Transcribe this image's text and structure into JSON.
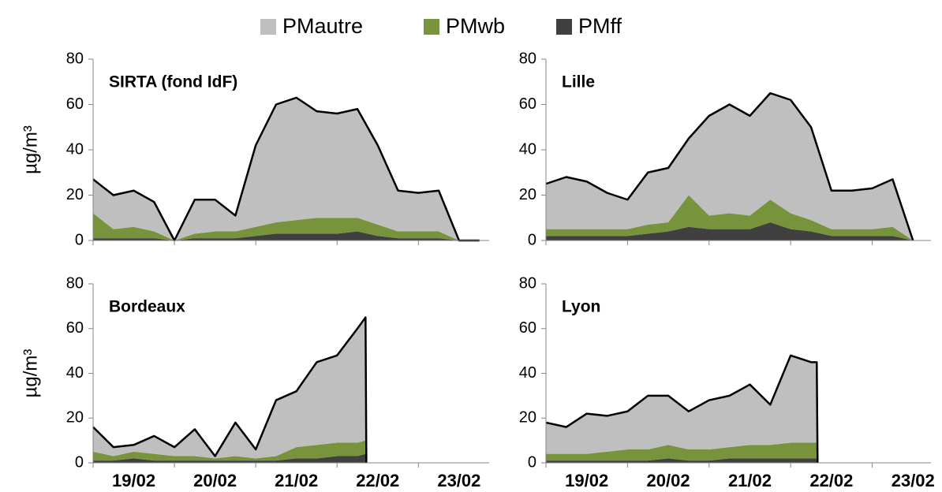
{
  "chart_data": [
    {
      "type": "area",
      "title": "SIRTA (fond IdF)",
      "y_label": "µg/m³",
      "x": [
        19,
        19.25,
        19.5,
        19.75,
        20,
        20.25,
        20.5,
        20.75,
        21,
        21.25,
        21.5,
        21.75,
        22,
        22.25,
        22.5,
        22.75,
        23,
        23.25,
        23.5,
        23.75
      ],
      "xlim": [
        19,
        23.87
      ],
      "xtick_marks": [
        19,
        20,
        21,
        22,
        23
      ],
      "ylim": [
        0,
        80
      ],
      "yticks": [
        0,
        20,
        40,
        60,
        80
      ],
      "series": [
        {
          "name": "PMautre",
          "color": "#bfbfbf",
          "values": [
            15,
            15,
            16,
            13,
            0,
            15,
            14,
            7,
            36,
            52,
            54,
            47,
            46,
            48,
            35,
            18,
            17,
            18,
            0,
            0
          ]
        },
        {
          "name": "PMwb",
          "color": "#77933c",
          "values": [
            11,
            4,
            5,
            3,
            0,
            2,
            3,
            3,
            4,
            5,
            6,
            7,
            7,
            6,
            5,
            3,
            3,
            3,
            0,
            0
          ]
        },
        {
          "name": "PMff",
          "color": "#404040",
          "values": [
            1,
            1,
            1,
            1,
            0,
            1,
            1,
            1,
            2,
            3,
            3,
            3,
            3,
            4,
            2,
            1,
            1,
            1,
            0,
            0
          ]
        }
      ]
    },
    {
      "type": "area",
      "title": "Lille",
      "x": [
        19,
        19.25,
        19.5,
        19.75,
        20,
        20.25,
        20.5,
        20.75,
        21,
        21.25,
        21.5,
        21.75,
        22,
        22.25,
        22.5,
        22.75,
        23,
        23.25,
        23.5
      ],
      "xlim": [
        19,
        23.72
      ],
      "xtick_marks": [
        19,
        20,
        21,
        22,
        23
      ],
      "ylim": [
        0,
        80
      ],
      "yticks": [
        0,
        20,
        40,
        60,
        80
      ],
      "series": [
        {
          "color": "#bfbfbf",
          "values": [
            20,
            23,
            21,
            16,
            13,
            23,
            24,
            25,
            44,
            48,
            44,
            47,
            50,
            41,
            17,
            17,
            18,
            21,
            0
          ]
        },
        {
          "color": "#77933c",
          "values": [
            3,
            3,
            3,
            3,
            3,
            4,
            4,
            14,
            6,
            7,
            6,
            10,
            7,
            5,
            3,
            3,
            3,
            4,
            0
          ]
        },
        {
          "color": "#404040",
          "values": [
            2,
            2,
            2,
            2,
            2,
            3,
            4,
            6,
            5,
            5,
            5,
            8,
            5,
            4,
            2,
            2,
            2,
            2,
            0
          ]
        }
      ]
    },
    {
      "type": "area",
      "title": "Bordeaux",
      "y_label": "µg/m³",
      "x": [
        19,
        19.25,
        19.5,
        19.75,
        20,
        20.25,
        20.5,
        20.75,
        21,
        21.25,
        21.5,
        21.75,
        22,
        22.25,
        22.35,
        22.36
      ],
      "xlim": [
        19,
        23.87
      ],
      "xtick_marks": [
        19,
        20,
        21,
        22,
        23
      ],
      "ylim": [
        0,
        80
      ],
      "yticks": [
        0,
        20,
        40,
        60,
        80
      ],
      "xticks": [
        {
          "value": 19.5,
          "label": "19/02"
        },
        {
          "value": 20.5,
          "label": "20/02"
        },
        {
          "value": 21.5,
          "label": "21/02"
        },
        {
          "value": 22.5,
          "label": "22/02"
        },
        {
          "value": 23.5,
          "label": "23/02"
        }
      ],
      "series": [
        {
          "color": "#bfbfbf",
          "values": [
            11,
            4,
            3,
            8,
            4,
            12,
            1,
            15,
            4,
            25,
            25,
            37,
            39,
            51,
            55,
            0
          ]
        },
        {
          "color": "#77933c",
          "values": [
            4,
            2,
            3,
            3,
            2,
            2,
            1,
            2,
            1,
            2,
            5,
            6,
            6,
            6,
            6,
            0
          ]
        },
        {
          "color": "#404040",
          "values": [
            1,
            1,
            2,
            1,
            1,
            1,
            1,
            1,
            1,
            1,
            2,
            2,
            3,
            3,
            4,
            0
          ]
        }
      ]
    },
    {
      "type": "area",
      "title": "Lyon",
      "x": [
        19,
        19.25,
        19.5,
        19.75,
        20,
        20.25,
        20.5,
        20.75,
        21,
        21.25,
        21.5,
        21.75,
        22,
        22.25,
        22.32,
        22.33
      ],
      "xlim": [
        19,
        23.72
      ],
      "xtick_marks": [
        19,
        20,
        21,
        22,
        23
      ],
      "ylim": [
        0,
        80
      ],
      "yticks": [
        0,
        20,
        40,
        60,
        80
      ],
      "xticks": [
        {
          "value": 19.5,
          "label": "19/02"
        },
        {
          "value": 20.5,
          "label": "20/02"
        },
        {
          "value": 21.5,
          "label": "21/02"
        },
        {
          "value": 22.5,
          "label": "22/02"
        },
        {
          "value": 23.5,
          "label": "23/02"
        }
      ],
      "series": [
        {
          "color": "#bfbfbf",
          "values": [
            14,
            12,
            18,
            16,
            17,
            24,
            22,
            17,
            22,
            23,
            27,
            18,
            39,
            36,
            36,
            0
          ]
        },
        {
          "color": "#77933c",
          "values": [
            3,
            3,
            3,
            4,
            5,
            5,
            6,
            5,
            5,
            5,
            6,
            6,
            7,
            7,
            7,
            0
          ]
        },
        {
          "color": "#404040",
          "values": [
            1,
            1,
            1,
            1,
            1,
            1,
            2,
            1,
            1,
            2,
            2,
            2,
            2,
            2,
            2,
            0
          ]
        }
      ]
    }
  ]
}
